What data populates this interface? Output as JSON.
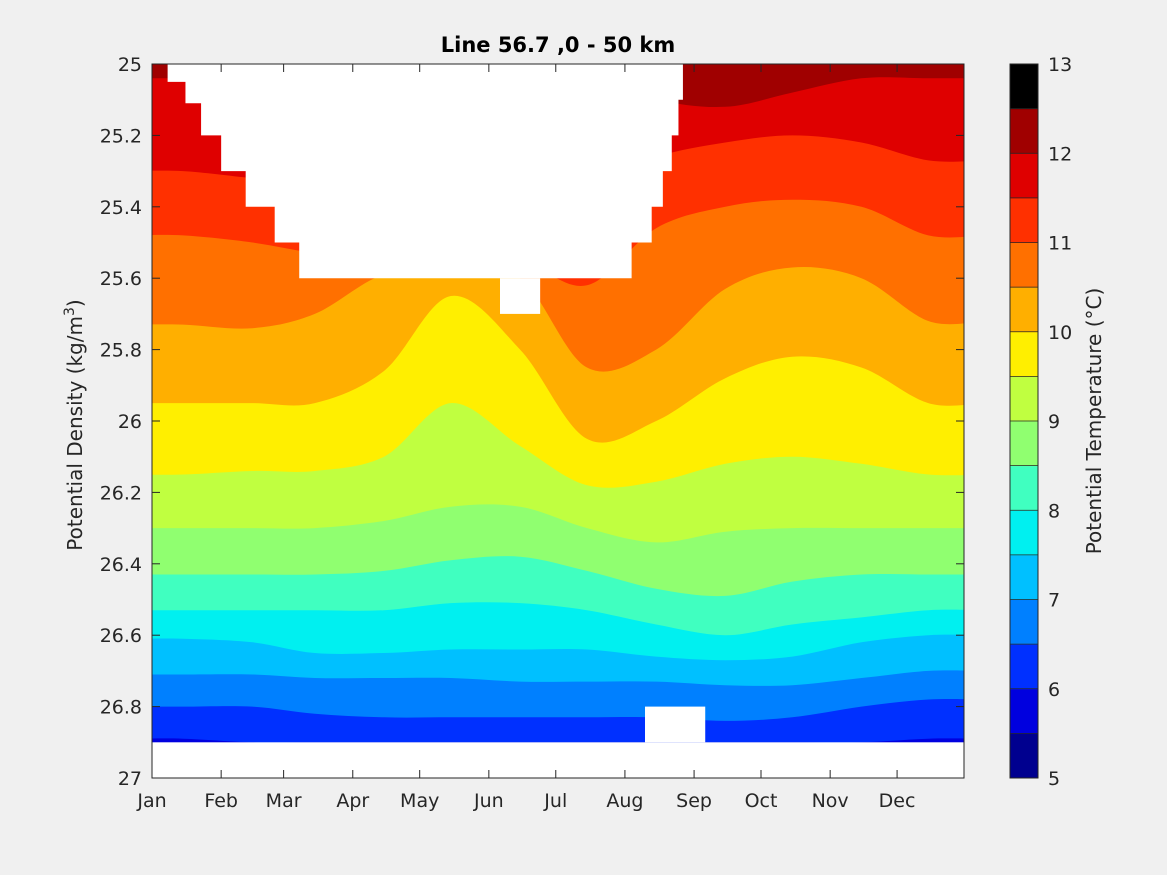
{
  "chart_data": {
    "type": "contourf",
    "title": "Line 56.7 ,0 - 50 km",
    "ylabel_main": "Potential Density (kg/m",
    "ylabel_sup": "3",
    "ylabel_close": ")",
    "colorbar_label": "Potential Temperature (°C)",
    "x": {
      "tick_labels": [
        "Jan",
        "Feb",
        "Mar",
        "Apr",
        "May",
        "Jun",
        "Jul",
        "Aug",
        "Sep",
        "Oct",
        "Nov",
        "Dec"
      ],
      "tick_days": [
        1,
        32,
        60,
        91,
        121,
        152,
        182,
        213,
        244,
        274,
        305,
        335
      ],
      "range_days": [
        1,
        365
      ]
    },
    "y": {
      "tick_labels": [
        "25",
        "25.2",
        "25.4",
        "25.6",
        "25.8",
        "26",
        "26.2",
        "26.4",
        "26.6",
        "26.8",
        "27"
      ],
      "tick_values": [
        25,
        25.2,
        25.4,
        25.6,
        25.8,
        26,
        26.2,
        26.4,
        26.6,
        26.8,
        27
      ],
      "range": [
        25,
        27
      ],
      "reversed": true
    },
    "levels": [
      5,
      5.5,
      6,
      6.5,
      7,
      7.5,
      8,
      8.5,
      9,
      9.5,
      10,
      10.5,
      11,
      11.5,
      12,
      12.5,
      13
    ],
    "colorbar_tick_labels": [
      "5",
      "6",
      "7",
      "8",
      "9",
      "10",
      "11",
      "12",
      "13"
    ],
    "colorbar_tick_values": [
      5,
      6,
      7,
      8,
      9,
      10,
      11,
      12,
      13
    ],
    "colormap": [
      "#00008f",
      "#0000df",
      "#0030ff",
      "#0080ff",
      "#00c0ff",
      "#00f0f0",
      "#40ffc0",
      "#90ff70",
      "#c0ff40",
      "#ffef00",
      "#ffaf00",
      "#ff7000",
      "#ff3000",
      "#df0000",
      "#a00000"
    ],
    "isotherms": [
      {
        "t": 12.5,
        "y": [
          25.0,
          25.0,
          25.0,
          25.0,
          25.0,
          25.0,
          25.0,
          25.0,
          24.98,
          25.0,
          25.0,
          25.0
        ]
      },
      {
        "t": 12,
        "y": [
          25.04,
          25.04,
          25.04,
          25.04,
          25.04,
          25.04,
          25.04,
          25.1,
          25.12,
          25.08,
          25.04,
          25.04
        ]
      },
      {
        "t": 11.5,
        "y": [
          25.3,
          25.32,
          25.34,
          25.34,
          25.34,
          25.34,
          25.34,
          25.26,
          25.22,
          25.2,
          25.22,
          25.27
        ]
      },
      {
        "t": 11,
        "y": [
          25.48,
          25.5,
          25.53,
          25.55,
          25.55,
          25.55,
          25.62,
          25.46,
          25.4,
          25.38,
          25.4,
          25.48
        ]
      },
      {
        "t": 10.5,
        "y": [
          25.73,
          25.74,
          25.7,
          25.59,
          25.59,
          25.6,
          25.85,
          25.8,
          25.63,
          25.57,
          25.6,
          25.72
        ]
      },
      {
        "t": 10,
        "y": [
          25.95,
          25.95,
          25.95,
          25.86,
          25.65,
          25.8,
          26.05,
          26.0,
          25.88,
          25.82,
          25.85,
          25.95
        ]
      },
      {
        "t": 9.5,
        "y": [
          26.15,
          26.14,
          26.14,
          26.1,
          25.95,
          26.07,
          26.18,
          26.17,
          26.12,
          26.1,
          26.12,
          26.15
        ]
      },
      {
        "t": 9,
        "y": [
          26.3,
          26.3,
          26.3,
          26.28,
          26.24,
          26.24,
          26.3,
          26.34,
          26.31,
          26.3,
          26.3,
          26.3
        ]
      },
      {
        "t": 8.5,
        "y": [
          26.43,
          26.43,
          26.43,
          26.42,
          26.39,
          26.38,
          26.42,
          26.47,
          26.49,
          26.45,
          26.43,
          26.43
        ]
      },
      {
        "t": 8,
        "y": [
          26.53,
          26.53,
          26.53,
          26.53,
          26.51,
          26.51,
          26.53,
          26.57,
          26.6,
          26.57,
          26.55,
          26.53
        ]
      },
      {
        "t": 7.5,
        "y": [
          26.61,
          26.62,
          26.65,
          26.65,
          26.64,
          26.64,
          26.64,
          26.66,
          26.67,
          26.66,
          26.62,
          26.6
        ]
      },
      {
        "t": 7,
        "y": [
          26.71,
          26.71,
          26.72,
          26.72,
          26.72,
          26.73,
          26.73,
          26.73,
          26.74,
          26.74,
          26.72,
          26.7
        ]
      },
      {
        "t": 6.5,
        "y": [
          26.8,
          26.8,
          26.82,
          26.83,
          26.83,
          26.83,
          26.83,
          26.83,
          26.84,
          26.83,
          26.8,
          26.78
        ]
      },
      {
        "t": 6,
        "y": [
          26.89,
          26.9,
          26.9,
          26.9,
          26.9,
          26.9,
          26.9,
          26.9,
          26.9,
          26.9,
          26.9,
          26.89
        ]
      }
    ],
    "missing_regions": [
      {
        "day": [
          1,
          365
        ],
        "y": [
          26.9,
          27.0
        ]
      },
      {
        "day": [
          222,
          249
        ],
        "y": [
          26.8,
          26.9
        ]
      },
      {
        "day": [
          157,
          175
        ],
        "y": [
          25.6,
          25.7
        ]
      },
      {
        "day": [
          8,
          237
        ],
        "y": [
          25.0,
          25.6
        ],
        "taper": "stepped"
      }
    ]
  }
}
